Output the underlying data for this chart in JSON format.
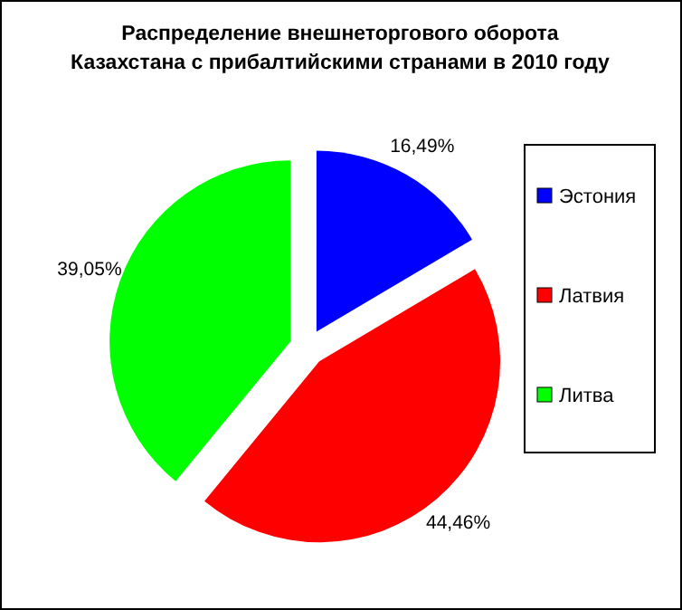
{
  "chart_data": {
    "type": "pie",
    "title": "Распределение внешнеторгового оборота\nКазахстана с прибалтийскими странами в 2010 году",
    "categories": [
      "Эстония",
      "Латвия",
      "Литва"
    ],
    "values": [
      16.49,
      44.46,
      39.05
    ],
    "colors": [
      "#0000ff",
      "#ff0000",
      "#00ff00"
    ],
    "value_labels": [
      "16,49%",
      "44,46%",
      "39,05%"
    ],
    "legend": "right"
  }
}
